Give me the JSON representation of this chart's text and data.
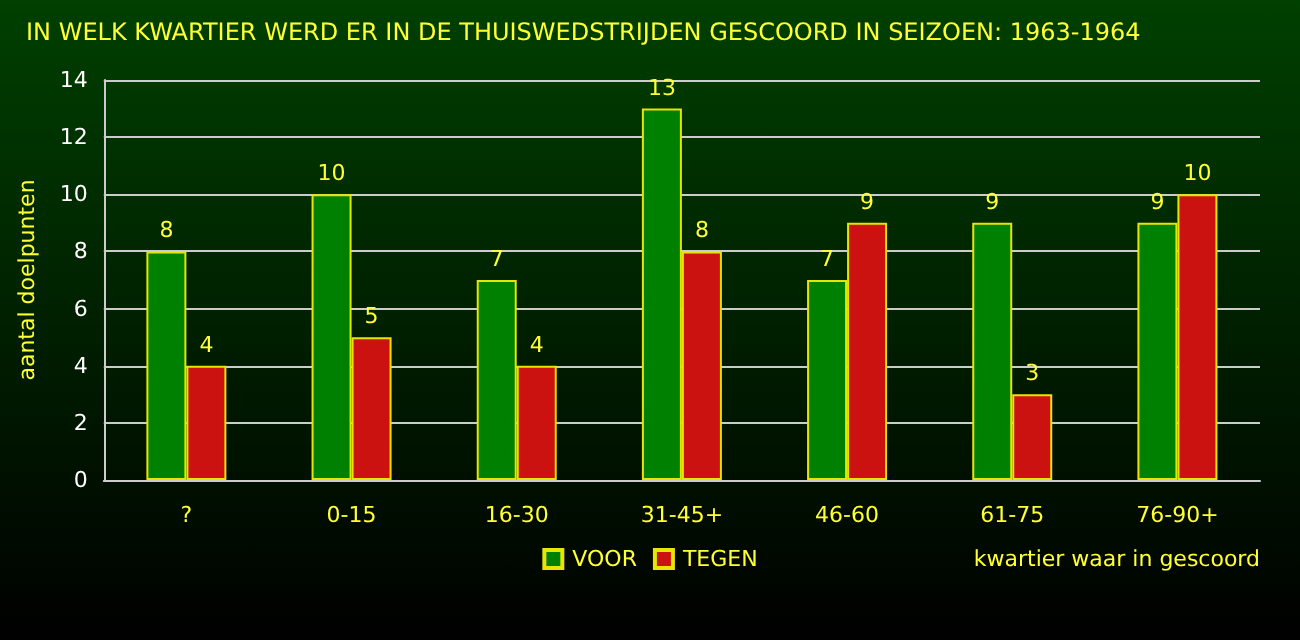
{
  "chart_data": {
    "type": "bar",
    "title": "IN WELK KWARTIER WERD ER IN DE THUISWEDSTRIJDEN GESCOORD IN SEIZOEN: 1963-1964",
    "xlabel": "kwartier waar in gescoord",
    "ylabel": "aantal doelpunten",
    "categories": [
      "?",
      "0-15",
      "16-30",
      "31-45+",
      "46-60",
      "61-75",
      "76-90+"
    ],
    "series": [
      {
        "name": "VOOR",
        "color": "#008000",
        "values": [
          8,
          10,
          7,
          13,
          7,
          9,
          9
        ]
      },
      {
        "name": "TEGEN",
        "color": "#cc1111",
        "values": [
          4,
          5,
          4,
          8,
          9,
          3,
          10
        ]
      }
    ],
    "ylim": [
      0,
      14
    ],
    "yticks": [
      0,
      2,
      4,
      6,
      8,
      10,
      12,
      14
    ],
    "grid": "y",
    "legend": "bottom",
    "data_labels": true
  }
}
